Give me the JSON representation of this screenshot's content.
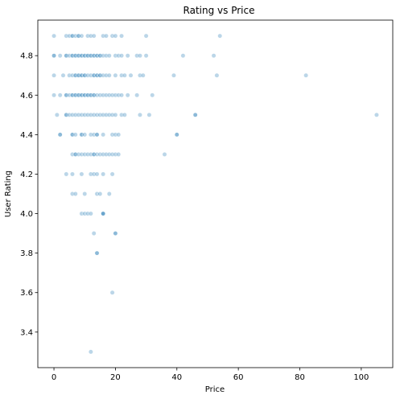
{
  "chart_data": {
    "type": "scatter",
    "title": "Rating vs Price",
    "xlabel": "Price",
    "ylabel": "User Rating",
    "xlim": [
      -5.25,
      110.25
    ],
    "ylim": [
      3.22,
      4.98
    ],
    "grid": false,
    "color": "#1f77b4",
    "alpha": 0.3,
    "x_ticks": [
      0,
      20,
      40,
      60,
      80,
      100
    ],
    "y_ticks": [
      3.4,
      3.6,
      3.8,
      4.0,
      4.2,
      4.4,
      4.6,
      4.8
    ],
    "y_tick_labels": [
      "3.4",
      "3.6",
      "3.8",
      "4.0",
      "4.2",
      "4.4",
      "4.6",
      "4.8"
    ],
    "series": [
      {
        "points": [
          [
            0,
            4.9
          ],
          [
            4,
            4.9
          ],
          [
            5,
            4.9
          ],
          [
            6,
            4.9
          ],
          [
            6,
            4.9
          ],
          [
            7,
            4.9
          ],
          [
            8,
            4.9
          ],
          [
            8,
            4.9
          ],
          [
            9,
            4.9
          ],
          [
            11,
            4.9
          ],
          [
            12,
            4.9
          ],
          [
            13,
            4.9
          ],
          [
            16,
            4.9
          ],
          [
            17,
            4.9
          ],
          [
            19,
            4.9
          ],
          [
            20,
            4.9
          ],
          [
            22,
            4.9
          ],
          [
            30,
            4.9
          ],
          [
            54,
            4.9
          ],
          [
            0,
            4.8
          ],
          [
            0,
            4.8
          ],
          [
            2,
            4.8
          ],
          [
            4,
            4.8
          ],
          [
            4,
            4.8
          ],
          [
            5,
            4.8
          ],
          [
            6,
            4.8
          ],
          [
            6,
            4.8
          ],
          [
            7,
            4.8
          ],
          [
            7,
            4.8
          ],
          [
            8,
            4.8
          ],
          [
            8,
            4.8
          ],
          [
            9,
            4.8
          ],
          [
            9,
            4.8
          ],
          [
            10,
            4.8
          ],
          [
            10,
            4.8
          ],
          [
            11,
            4.8
          ],
          [
            11,
            4.8
          ],
          [
            12,
            4.8
          ],
          [
            12,
            4.8
          ],
          [
            13,
            4.8
          ],
          [
            13,
            4.8
          ],
          [
            14,
            4.8
          ],
          [
            14,
            4.8
          ],
          [
            15,
            4.8
          ],
          [
            15,
            4.8
          ],
          [
            16,
            4.8
          ],
          [
            17,
            4.8
          ],
          [
            18,
            4.8
          ],
          [
            20,
            4.8
          ],
          [
            21,
            4.8
          ],
          [
            22,
            4.8
          ],
          [
            24,
            4.8
          ],
          [
            27,
            4.8
          ],
          [
            28,
            4.8
          ],
          [
            30,
            4.8
          ],
          [
            42,
            4.8
          ],
          [
            52,
            4.8
          ],
          [
            0,
            4.7
          ],
          [
            3,
            4.7
          ],
          [
            5,
            4.7
          ],
          [
            6,
            4.7
          ],
          [
            7,
            4.7
          ],
          [
            7,
            4.7
          ],
          [
            8,
            4.7
          ],
          [
            8,
            4.7
          ],
          [
            9,
            4.7
          ],
          [
            9,
            4.7
          ],
          [
            10,
            4.7
          ],
          [
            10,
            4.7
          ],
          [
            11,
            4.7
          ],
          [
            12,
            4.7
          ],
          [
            13,
            4.7
          ],
          [
            13,
            4.7
          ],
          [
            14,
            4.7
          ],
          [
            14,
            4.7
          ],
          [
            15,
            4.7
          ],
          [
            15,
            4.7
          ],
          [
            16,
            4.7
          ],
          [
            17,
            4.7
          ],
          [
            18,
            4.7
          ],
          [
            20,
            4.7
          ],
          [
            22,
            4.7
          ],
          [
            23,
            4.7
          ],
          [
            25,
            4.7
          ],
          [
            28,
            4.7
          ],
          [
            29,
            4.7
          ],
          [
            39,
            4.7
          ],
          [
            53,
            4.7
          ],
          [
            82,
            4.7
          ],
          [
            0,
            4.6
          ],
          [
            2,
            4.6
          ],
          [
            4,
            4.6
          ],
          [
            4,
            4.6
          ],
          [
            5,
            4.6
          ],
          [
            6,
            4.6
          ],
          [
            6,
            4.6
          ],
          [
            7,
            4.6
          ],
          [
            7,
            4.6
          ],
          [
            8,
            4.6
          ],
          [
            8,
            4.6
          ],
          [
            9,
            4.6
          ],
          [
            9,
            4.6
          ],
          [
            10,
            4.6
          ],
          [
            10,
            4.6
          ],
          [
            11,
            4.6
          ],
          [
            11,
            4.6
          ],
          [
            12,
            4.6
          ],
          [
            12,
            4.6
          ],
          [
            13,
            4.6
          ],
          [
            13,
            4.6
          ],
          [
            14,
            4.6
          ],
          [
            15,
            4.6
          ],
          [
            16,
            4.6
          ],
          [
            17,
            4.6
          ],
          [
            18,
            4.6
          ],
          [
            19,
            4.6
          ],
          [
            20,
            4.6
          ],
          [
            21,
            4.6
          ],
          [
            22,
            4.6
          ],
          [
            24,
            4.6
          ],
          [
            27,
            4.6
          ],
          [
            32,
            4.6
          ],
          [
            1,
            4.5
          ],
          [
            4,
            4.5
          ],
          [
            4,
            4.5
          ],
          [
            5,
            4.5
          ],
          [
            6,
            4.5
          ],
          [
            7,
            4.5
          ],
          [
            8,
            4.5
          ],
          [
            9,
            4.5
          ],
          [
            10,
            4.5
          ],
          [
            11,
            4.5
          ],
          [
            12,
            4.5
          ],
          [
            13,
            4.5
          ],
          [
            14,
            4.5
          ],
          [
            15,
            4.5
          ],
          [
            16,
            4.5
          ],
          [
            17,
            4.5
          ],
          [
            18,
            4.5
          ],
          [
            19,
            4.5
          ],
          [
            20,
            4.5
          ],
          [
            22,
            4.5
          ],
          [
            23,
            4.5
          ],
          [
            28,
            4.5
          ],
          [
            31,
            4.5
          ],
          [
            46,
            4.5
          ],
          [
            46,
            4.5
          ],
          [
            105,
            4.5
          ],
          [
            2,
            4.4
          ],
          [
            2,
            4.4
          ],
          [
            6,
            4.4
          ],
          [
            6,
            4.4
          ],
          [
            7,
            4.4
          ],
          [
            9,
            4.4
          ],
          [
            9,
            4.4
          ],
          [
            10,
            4.4
          ],
          [
            12,
            4.4
          ],
          [
            13,
            4.4
          ],
          [
            14,
            4.4
          ],
          [
            14,
            4.4
          ],
          [
            16,
            4.4
          ],
          [
            19,
            4.4
          ],
          [
            20,
            4.4
          ],
          [
            21,
            4.4
          ],
          [
            40,
            4.4
          ],
          [
            40,
            4.4
          ],
          [
            6,
            4.3
          ],
          [
            7,
            4.3
          ],
          [
            7,
            4.3
          ],
          [
            8,
            4.3
          ],
          [
            9,
            4.3
          ],
          [
            10,
            4.3
          ],
          [
            11,
            4.3
          ],
          [
            12,
            4.3
          ],
          [
            13,
            4.3
          ],
          [
            13,
            4.3
          ],
          [
            14,
            4.3
          ],
          [
            15,
            4.3
          ],
          [
            16,
            4.3
          ],
          [
            17,
            4.3
          ],
          [
            18,
            4.3
          ],
          [
            19,
            4.3
          ],
          [
            20,
            4.3
          ],
          [
            21,
            4.3
          ],
          [
            36,
            4.3
          ],
          [
            4,
            4.2
          ],
          [
            6,
            4.2
          ],
          [
            9,
            4.2
          ],
          [
            12,
            4.2
          ],
          [
            13,
            4.2
          ],
          [
            14,
            4.2
          ],
          [
            16,
            4.2
          ],
          [
            19,
            4.2
          ],
          [
            6,
            4.1
          ],
          [
            7,
            4.1
          ],
          [
            10,
            4.1
          ],
          [
            14,
            4.1
          ],
          [
            15,
            4.1
          ],
          [
            18,
            4.1
          ],
          [
            9,
            4.0
          ],
          [
            10,
            4.0
          ],
          [
            11,
            4.0
          ],
          [
            12,
            4.0
          ],
          [
            16,
            4.0
          ],
          [
            16,
            4.0
          ],
          [
            16,
            4.0
          ],
          [
            13,
            3.9
          ],
          [
            20,
            3.9
          ],
          [
            20,
            3.9
          ],
          [
            14,
            3.8
          ],
          [
            14,
            3.8
          ],
          [
            19,
            3.6
          ],
          [
            12,
            3.3
          ]
        ]
      }
    ]
  }
}
